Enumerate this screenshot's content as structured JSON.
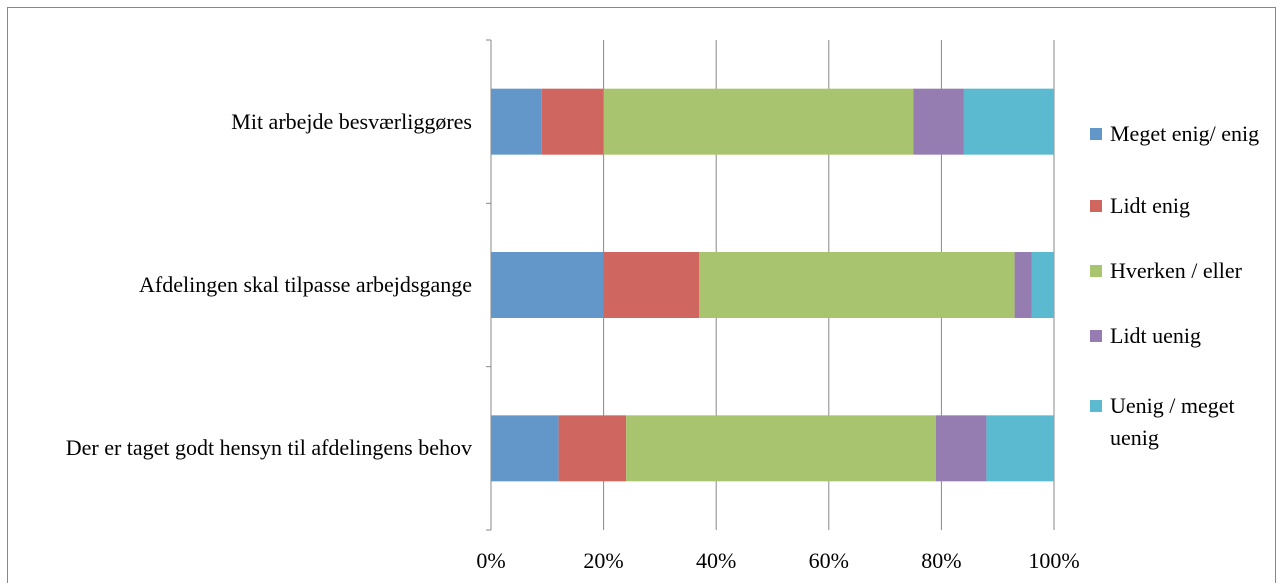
{
  "chart_data": {
    "type": "stacked_bar_horizontal",
    "categories": [
      "Mit arbejde besværliggøres",
      "Afdelingen skal tilpasse arbejdsgange",
      "Der er taget godt hensyn til afdelingens behov"
    ],
    "series": [
      {
        "name": "Meget enig/ enig",
        "color": "#6497c9",
        "values": [
          9,
          20,
          12
        ]
      },
      {
        "name": "Lidt enig",
        "color": "#cf6760",
        "values": [
          11,
          17,
          12
        ]
      },
      {
        "name": "Hverken / eller",
        "color": "#a9c46e",
        "values": [
          55,
          56,
          55
        ]
      },
      {
        "name": "Lidt uenig",
        "color": "#957db2",
        "values": [
          9,
          3,
          9
        ]
      },
      {
        "name": "Uenig / meget uenig",
        "color": "#5bbad0",
        "values": [
          16,
          4,
          12
        ]
      }
    ],
    "xlim": [
      0,
      100
    ],
    "xticks": [
      {
        "value": 0,
        "label": "0%"
      },
      {
        "value": 20,
        "label": "20%"
      },
      {
        "value": 40,
        "label": "40%"
      },
      {
        "value": 60,
        "label": "60%"
      },
      {
        "value": 80,
        "label": "80%"
      },
      {
        "value": 100,
        "label": "100%"
      }
    ],
    "grid": true,
    "legend": "right"
  }
}
